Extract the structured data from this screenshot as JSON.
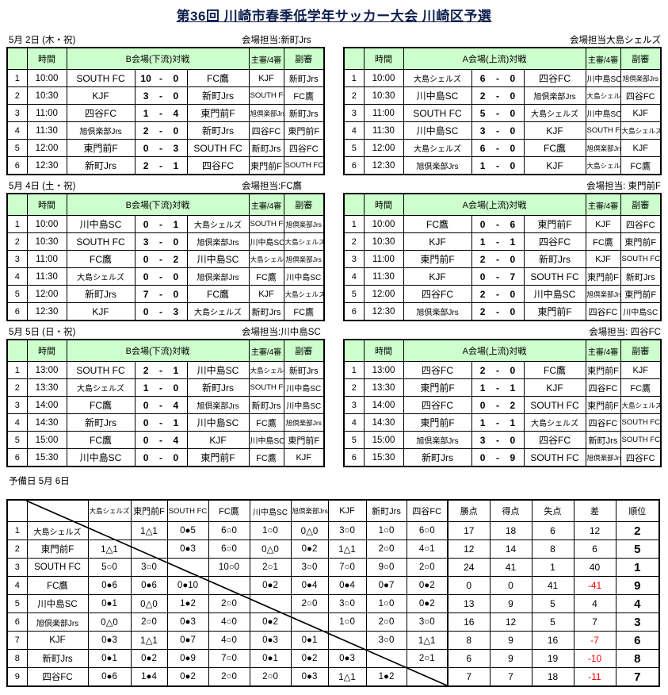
{
  "title": "第36回  川崎市春季低学年サッカー大会  川崎区予選",
  "reserve_day": "予備日 5月 6日",
  "colors": {
    "header_green": "#CCFFCC",
    "negative_red": "#FF0000",
    "title_navy": "#0E1F4D"
  },
  "labels": {
    "time": "時間",
    "referee": "主審/4審",
    "assistant": "副審",
    "score_sep": "-"
  },
  "days": [
    {
      "date": "5月 2日 (木・祝)",
      "venues": [
        {
          "manager": "会場担当:新町Jrs",
          "title": "B会場(下流)対戦",
          "matches": [
            {
              "no": "1",
              "time": "10:00",
              "home": "SOUTH FC",
              "hs": "10",
              "as": "0",
              "away": "FC鷹",
              "referee": "KJF",
              "assistant": "新町Jrs"
            },
            {
              "no": "2",
              "time": "10:30",
              "home": "KJF",
              "hs": "3",
              "as": "0",
              "away": "新町Jrs",
              "referee": "SOUTH FC",
              "assistant": "FC鷹"
            },
            {
              "no": "3",
              "time": "11:00",
              "home": "四谷FC",
              "hs": "1",
              "as": "4",
              "away": "東門前F",
              "referee": "旭倶楽部Jrs",
              "assistant": "新町Jrs"
            },
            {
              "no": "4",
              "time": "11:30",
              "home": "旭倶楽部Jrs",
              "hs": "2",
              "as": "0",
              "away": "新町Jrs",
              "referee": "四谷FC",
              "assistant": "東門前F"
            },
            {
              "no": "5",
              "time": "12:00",
              "home": "東門前F",
              "hs": "0",
              "as": "3",
              "away": "SOUTH FC",
              "referee": "新町Jrs",
              "assistant": "四谷FC"
            },
            {
              "no": "6",
              "time": "12:30",
              "home": "新町Jrs",
              "hs": "2",
              "as": "1",
              "away": "四谷FC",
              "referee": "東門前F",
              "assistant": "SOUTH FC"
            }
          ]
        },
        {
          "manager": "会場担当大島シェルズ",
          "title": "A会場(上流)対戦",
          "matches": [
            {
              "no": "1",
              "time": "10:00",
              "home": "大島シェルズ",
              "hs": "6",
              "as": "0",
              "away": "四谷FC",
              "referee": "川中島SC",
              "assistant": "旭倶楽部Jrs"
            },
            {
              "no": "2",
              "time": "10:30",
              "home": "川中島SC",
              "hs": "2",
              "as": "0",
              "away": "旭倶楽部Jrs",
              "referee": "大島シェルズ",
              "assistant": "四谷FC"
            },
            {
              "no": "3",
              "time": "11:00",
              "home": "SOUTH FC",
              "hs": "5",
              "as": "0",
              "away": "大島シェルズ",
              "referee": "川中島SC",
              "assistant": "KJF"
            },
            {
              "no": "4",
              "time": "11:30",
              "home": "川中島SC",
              "hs": "3",
              "as": "0",
              "away": "KJF",
              "referee": "SOUTH FC",
              "assistant": "大島シェルズ"
            },
            {
              "no": "5",
              "time": "12:00",
              "home": "大島シェルズ",
              "hs": "6",
              "as": "0",
              "away": "FC鷹",
              "referee": "旭倶楽部Jrs",
              "assistant": "KJF"
            },
            {
              "no": "6",
              "time": "12:30",
              "home": "旭倶楽部Jrs",
              "hs": "1",
              "as": "0",
              "away": "KJF",
              "referee": "大島シェルズ",
              "assistant": "FC鷹"
            }
          ]
        }
      ]
    },
    {
      "date": "5月 4日 (土・祝)",
      "venues": [
        {
          "manager": "会場担当:FC鷹",
          "title": "B会場(下流)対戦",
          "matches": [
            {
              "no": "1",
              "time": "10:00",
              "home": "川中島SC",
              "hs": "0",
              "as": "1",
              "away": "大島シェルズ",
              "referee": "SOUTH FC",
              "assistant": "旭倶楽部Jrs"
            },
            {
              "no": "2",
              "time": "10:30",
              "home": "SOUTH FC",
              "hs": "3",
              "as": "0",
              "away": "旭倶楽部Jrs",
              "referee": "川中島SC",
              "assistant": "大島シェルズ"
            },
            {
              "no": "3",
              "time": "11:00",
              "home": "FC鷹",
              "hs": "0",
              "as": "2",
              "away": "川中島SC",
              "referee": "大島シェルズ",
              "assistant": "旭倶楽部Jrs"
            },
            {
              "no": "4",
              "time": "11:30",
              "home": "大島シェルズ",
              "hs": "0",
              "as": "0",
              "away": "旭倶楽部Jrs",
              "referee": "FC鷹",
              "assistant": "川中島SC"
            },
            {
              "no": "5",
              "time": "12:00",
              "home": "新町Jrs",
              "hs": "7",
              "as": "0",
              "away": "FC鷹",
              "referee": "KJF",
              "assistant": "大島シェルズ"
            },
            {
              "no": "6",
              "time": "12:30",
              "home": "KJF",
              "hs": "0",
              "as": "3",
              "away": "大島シェルズ",
              "referee": "新町Jrs",
              "assistant": "FC鷹"
            }
          ]
        },
        {
          "manager": "会場担当: 東門前F",
          "title": "A会場(上流)対戦",
          "matches": [
            {
              "no": "1",
              "time": "10:00",
              "home": "FC鷹",
              "hs": "0",
              "as": "6",
              "away": "東門前F",
              "referee": "KJF",
              "assistant": "四谷FC"
            },
            {
              "no": "2",
              "time": "10:30",
              "home": "KJF",
              "hs": "1",
              "as": "1",
              "away": "四谷FC",
              "referee": "FC鷹",
              "assistant": "東門前F"
            },
            {
              "no": "3",
              "time": "11:00",
              "home": "東門前F",
              "hs": "2",
              "as": "0",
              "away": "新町Jrs",
              "referee": "KJF",
              "assistant": "SOUTH FC"
            },
            {
              "no": "4",
              "time": "11:30",
              "home": "KJF",
              "hs": "0",
              "as": "7",
              "away": "SOUTH FC",
              "referee": "東門前F",
              "assistant": "新町Jrs"
            },
            {
              "no": "5",
              "time": "12:00",
              "home": "四谷FC",
              "hs": "2",
              "as": "0",
              "away": "川中島SC",
              "referee": "旭倶楽部Jrs",
              "assistant": "東門前F"
            },
            {
              "no": "6",
              "time": "12:30",
              "home": "旭倶楽部Jrs",
              "hs": "2",
              "as": "0",
              "away": "東門前F",
              "referee": "四谷FC",
              "assistant": "川中島SC"
            }
          ]
        }
      ]
    },
    {
      "date": "5月 5日 (日・祝)",
      "venues": [
        {
          "manager": "会場担当:川中島SC",
          "title": "B会場(下流)対戦",
          "matches": [
            {
              "no": "1",
              "time": "13:00",
              "home": "SOUTH FC",
              "hs": "2",
              "as": "1",
              "away": "川中島SC",
              "referee": "大島シェルズ",
              "assistant": "新町Jrs"
            },
            {
              "no": "2",
              "time": "13:30",
              "home": "大島シェルズ",
              "hs": "1",
              "as": "0",
              "away": "新町Jrs",
              "referee": "SOUTH FC",
              "assistant": "川中島SC"
            },
            {
              "no": "3",
              "time": "14:00",
              "home": "FC鷹",
              "hs": "0",
              "as": "4",
              "away": "旭倶楽部Jrs",
              "referee": "新町Jrs",
              "assistant": "川中島SC"
            },
            {
              "no": "4",
              "time": "14:30",
              "home": "新町Jrs",
              "hs": "0",
              "as": "1",
              "away": "川中島SC",
              "referee": "FC鷹",
              "assistant": "旭倶楽部Jrs"
            },
            {
              "no": "5",
              "time": "15:00",
              "home": "FC鷹",
              "hs": "0",
              "as": "4",
              "away": "KJF",
              "referee": "川中島SC",
              "assistant": "東門前F"
            },
            {
              "no": "6",
              "time": "15:30",
              "home": "川中島SC",
              "hs": "0",
              "as": "0",
              "away": "東門前F",
              "referee": "FC鷹",
              "assistant": "KJF"
            }
          ]
        },
        {
          "manager": "会場担当: 四谷FC",
          "title": "A会場(上流)対戦",
          "matches": [
            {
              "no": "1",
              "time": "13:00",
              "home": "四谷FC",
              "hs": "2",
              "as": "0",
              "away": "FC鷹",
              "referee": "東門前F",
              "assistant": "KJF"
            },
            {
              "no": "2",
              "time": "13:30",
              "home": "東門前F",
              "hs": "1",
              "as": "1",
              "away": "KJF",
              "referee": "四谷FC",
              "assistant": "FC鷹"
            },
            {
              "no": "3",
              "time": "14:00",
              "home": "四谷FC",
              "hs": "0",
              "as": "2",
              "away": "SOUTH FC",
              "referee": "東門前F",
              "assistant": "大島シェルズ"
            },
            {
              "no": "4",
              "time": "14:30",
              "home": "東門前F",
              "hs": "1",
              "as": "1",
              "away": "大島シェルズ",
              "referee": "四谷FC",
              "assistant": "SOUTH FC"
            },
            {
              "no": "5",
              "time": "15:00",
              "home": "旭倶楽部Jrs",
              "hs": "3",
              "as": "0",
              "away": "四谷FC",
              "referee": "新町Jrs",
              "assistant": "SOUTH FC"
            },
            {
              "no": "6",
              "time": "15:30",
              "home": "新町Jrs",
              "hs": "0",
              "as": "9",
              "away": "SOUTH FC",
              "referee": "旭倶楽部Jrs",
              "assistant": "四谷FC"
            }
          ]
        }
      ]
    }
  ],
  "standings": {
    "column_teams": [
      "大島シェルズ",
      "東門前F",
      "SOUTH FC",
      "FC鷹",
      "川中島SC",
      "旭倶楽部Jrs",
      "KJF",
      "新町Jrs",
      "四谷FC"
    ],
    "stat_headers": [
      "勝点",
      "得点",
      "失点",
      "差",
      "順位"
    ],
    "rows": [
      {
        "no": "1",
        "team": "大島シェルズ",
        "cells": [
          "",
          "1△1",
          "0●5",
          "6○0",
          "1○0",
          "0△0",
          "3○0",
          "1○0",
          "6○0"
        ],
        "points": "17",
        "goals_for": "18",
        "goals_against": "6",
        "diff": "12",
        "rank": "2"
      },
      {
        "no": "2",
        "team": "東門前F",
        "cells": [
          "1△1",
          "",
          "0●3",
          "6○0",
          "0△0",
          "0●2",
          "1△1",
          "2○0",
          "4○1"
        ],
        "points": "12",
        "goals_for": "14",
        "goals_against": "8",
        "diff": "6",
        "rank": "5"
      },
      {
        "no": "3",
        "team": "SOUTH FC",
        "cells": [
          "5○0",
          "3○0",
          "",
          "10○0",
          "2○1",
          "3○0",
          "7○0",
          "9○0",
          "2○0"
        ],
        "points": "24",
        "goals_for": "41",
        "goals_against": "1",
        "diff": "40",
        "rank": "1"
      },
      {
        "no": "4",
        "team": "FC鷹",
        "cells": [
          "0●6",
          "0●6",
          "0●10",
          "",
          "0●2",
          "0●4",
          "0●4",
          "0●7",
          "0●2"
        ],
        "points": "0",
        "goals_for": "0",
        "goals_against": "41",
        "diff": "-41",
        "rank": "9"
      },
      {
        "no": "5",
        "team": "川中島SC",
        "cells": [
          "0●1",
          "0△0",
          "1●2",
          "2○0",
          "",
          "2○0",
          "3○0",
          "1○0",
          "0●2"
        ],
        "points": "13",
        "goals_for": "9",
        "goals_against": "5",
        "diff": "4",
        "rank": "4"
      },
      {
        "no": "6",
        "team": "旭倶楽部Jrs",
        "cells": [
          "0△0",
          "2○0",
          "0●3",
          "4○0",
          "0●2",
          "",
          "1○0",
          "2○0",
          "3○0"
        ],
        "points": "16",
        "goals_for": "12",
        "goals_against": "5",
        "diff": "7",
        "rank": "3"
      },
      {
        "no": "7",
        "team": "KJF",
        "cells": [
          "0●3",
          "1△1",
          "0●7",
          "4○0",
          "0●3",
          "0●1",
          "",
          "3○0",
          "1△1"
        ],
        "points": "8",
        "goals_for": "9",
        "goals_against": "16",
        "diff": "-7",
        "rank": "6"
      },
      {
        "no": "8",
        "team": "新町Jrs",
        "cells": [
          "0●1",
          "0●2",
          "0●9",
          "7○0",
          "0●1",
          "0●2",
          "0●3",
          "",
          "2○1"
        ],
        "points": "6",
        "goals_for": "9",
        "goals_against": "19",
        "diff": "-10",
        "rank": "8"
      },
      {
        "no": "9",
        "team": "四谷FC",
        "cells": [
          "0●6",
          "1●4",
          "0●2",
          "2○0",
          "2○0",
          "0●3",
          "1△1",
          "1●2",
          ""
        ],
        "points": "7",
        "goals_for": "7",
        "goals_against": "18",
        "diff": "-11",
        "rank": "7"
      }
    ]
  }
}
